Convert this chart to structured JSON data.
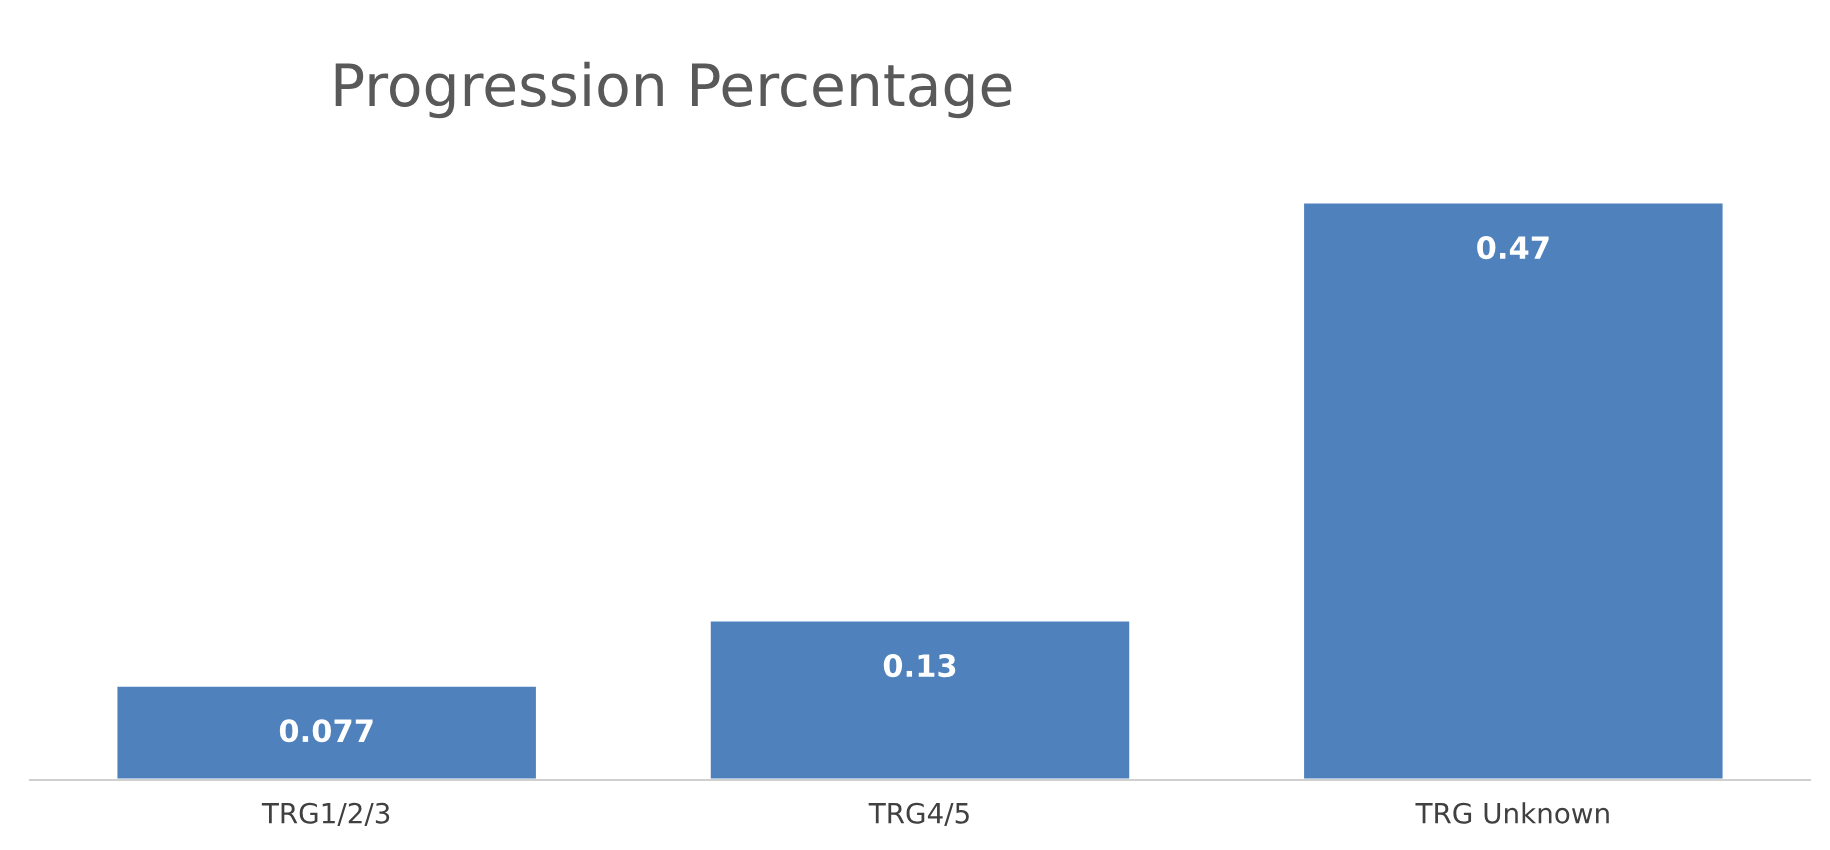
{
  "chart_data": {
    "type": "bar",
    "title": "Progression Percentage",
    "categories": [
      "TRG1/2/3",
      "TRG4/5",
      "TRG Unknown"
    ],
    "values": [
      0.077,
      0.13,
      0.47
    ],
    "color": "#4f81bd",
    "data_labels": true,
    "grid": false,
    "legend": false
  }
}
